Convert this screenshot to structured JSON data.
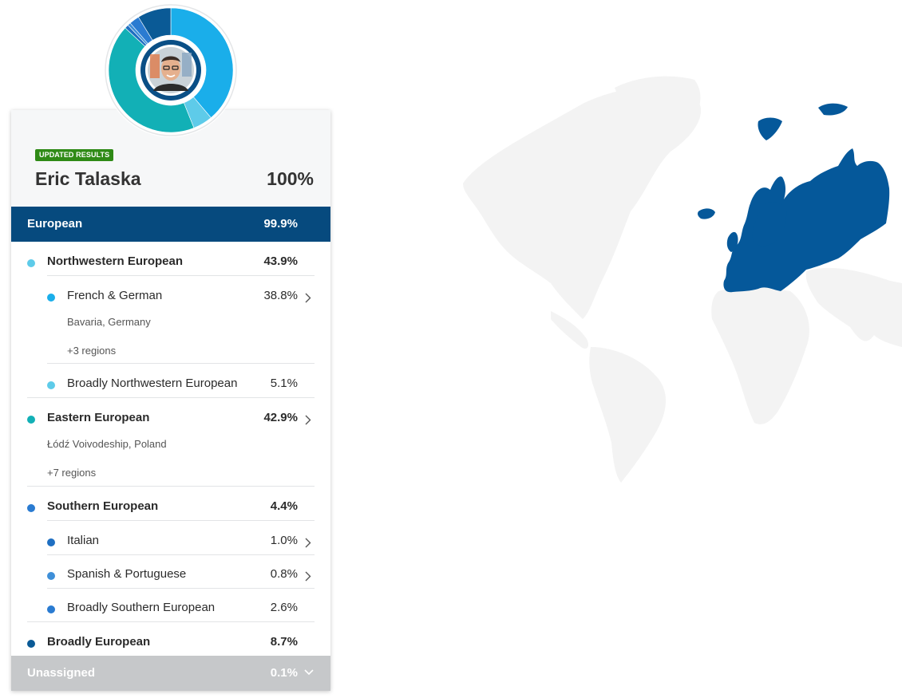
{
  "profile": {
    "badge": "UPDATED RESULTS",
    "name": "Eric Talaska",
    "total": "100%"
  },
  "donut_chart": {
    "type": "pie",
    "segments": [
      {
        "label": "French & German",
        "value": 38.8,
        "color": "#1aaeea"
      },
      {
        "label": "Broadly Northwestern European",
        "value": 5.1,
        "color": "#5ecbe9"
      },
      {
        "label": "Eastern European",
        "value": 42.9,
        "color": "#12b0b6"
      },
      {
        "label": "Italian",
        "value": 1.0,
        "color": "#1f6fc2"
      },
      {
        "label": "Spanish & Portuguese",
        "value": 0.8,
        "color": "#3e8fd8"
      },
      {
        "label": "Broadly Southern European",
        "value": 2.6,
        "color": "#2a7bd1"
      },
      {
        "label": "Broadly European",
        "value": 8.7,
        "color": "#0a5a96"
      }
    ]
  },
  "european": {
    "label": "European",
    "pct": "99.9%"
  },
  "regions": {
    "northwestern": {
      "label": "Northwestern European",
      "pct": "43.9%",
      "color": "#5ecbe9",
      "french_german": {
        "label": "French & German",
        "pct": "38.8%",
        "color": "#1aaeea",
        "place": "Bavaria",
        "place_country": ", Germany",
        "more": "+3 regions"
      },
      "broadly_nw": {
        "label": "Broadly Northwestern European",
        "pct": "5.1%",
        "color": "#5ecbe9"
      }
    },
    "eastern": {
      "label": "Eastern European",
      "pct": "42.9%",
      "color": "#12b0b6",
      "place": "Łódź Voivodeship",
      "place_country": ", Poland",
      "more": "+7 regions"
    },
    "southern": {
      "label": "Southern European",
      "pct": "4.4%",
      "color": "#2a7bd1",
      "italian": {
        "label": "Italian",
        "pct": "1.0%",
        "color": "#1f6fc2"
      },
      "spanish": {
        "label": "Spanish & Portuguese",
        "pct": "0.8%",
        "color": "#3e8fd8"
      },
      "broadly_s": {
        "label": "Broadly Southern European",
        "pct": "2.6%",
        "color": "#2a7bd1"
      }
    },
    "broadly_european": {
      "label": "Broadly European",
      "pct": "8.7%",
      "color": "#0a5a96"
    }
  },
  "unassigned": {
    "label": "Unassigned",
    "pct": "0.1%"
  },
  "colors": {
    "european_band": "#064a7e",
    "map_land": "#f2f2f2",
    "map_highlight": "#05589a"
  },
  "icons": [
    "chevron-right-icon",
    "chevron-down-icon",
    "avatar"
  ]
}
